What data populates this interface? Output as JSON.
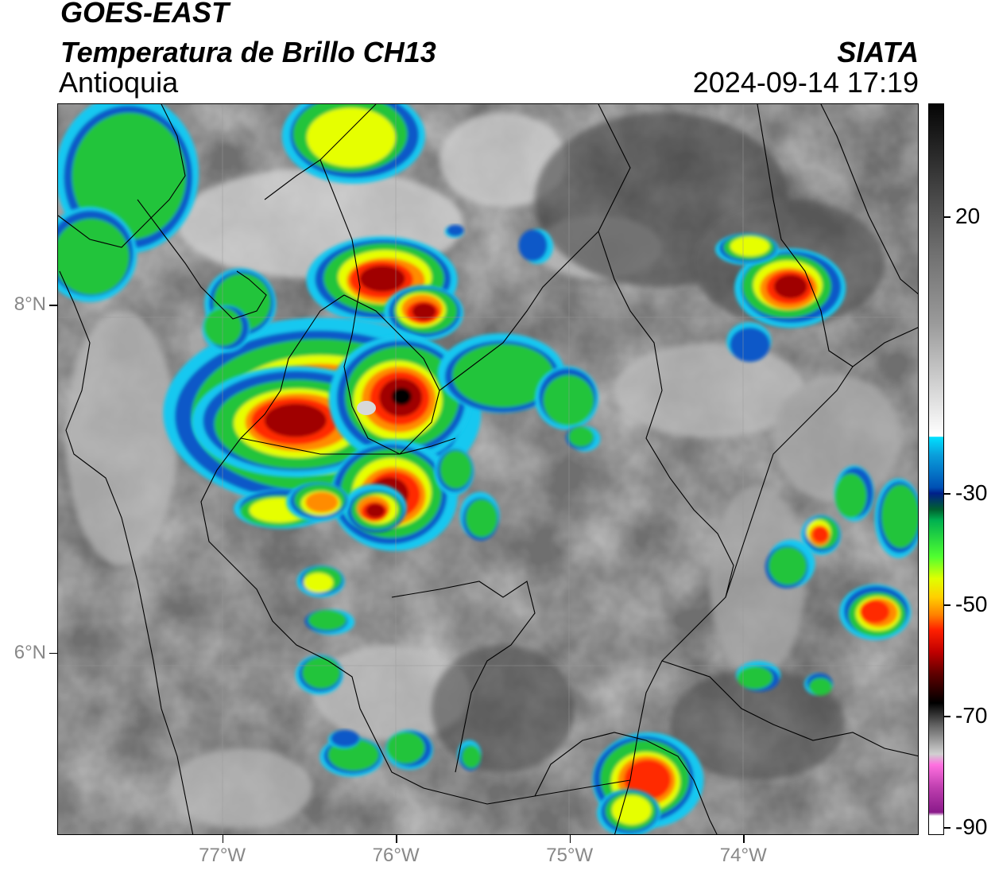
{
  "header": {
    "title": "GOES-EAST",
    "subtitle": "Temperatura de Brillo CH13",
    "region": "Antioquia",
    "organization": "SIATA",
    "datetime": "2024-09-14 17:19"
  },
  "map": {
    "lat_ticks": [
      {
        "value": 8,
        "label": "8°N"
      },
      {
        "value": 6,
        "label": "6°N"
      }
    ],
    "lon_ticks": [
      {
        "value": -77,
        "label": "77°W"
      },
      {
        "value": -76,
        "label": "76°W"
      },
      {
        "value": -75,
        "label": "75°W"
      },
      {
        "value": -74,
        "label": "74°W"
      }
    ],
    "lon_range": [
      -77.95,
      -72.99
    ],
    "lat_range": [
      4.95,
      9.16
    ]
  },
  "colorbar": {
    "ticks": [
      {
        "value": 20,
        "label": "20"
      },
      {
        "value": -30,
        "label": "-30"
      },
      {
        "value": -50,
        "label": "-50"
      },
      {
        "value": -70,
        "label": "-70"
      },
      {
        "value": -90,
        "label": "-90"
      }
    ]
  },
  "colors": {
    "cold_core": "#000000",
    "deep_red": "#a00000",
    "red": "#ff2a00",
    "orange": "#ff8c00",
    "yellow": "#e6ff00",
    "green": "#22c43a",
    "blue": "#0a58c8",
    "cyan": "#18c8f0"
  }
}
